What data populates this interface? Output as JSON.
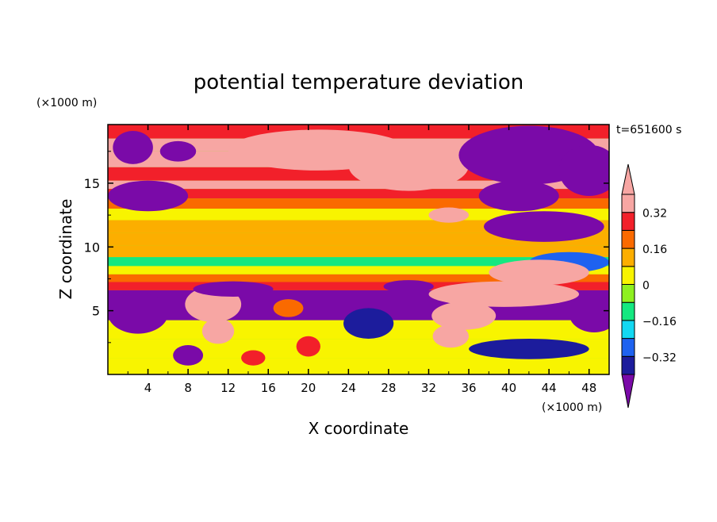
{
  "chart_data": {
    "type": "heatmap",
    "title": "potential temperature deviation",
    "time_label": "t=651600 s",
    "xlabel": "X coordinate",
    "ylabel": "Z coordinate",
    "x_unit": "(×1000 m)",
    "y_unit": "(×1000 m)",
    "xlim": [
      0,
      50
    ],
    "ylim": [
      0,
      19.6
    ],
    "x_ticks": [
      4,
      8,
      12,
      16,
      20,
      24,
      28,
      32,
      36,
      40,
      44,
      48
    ],
    "y_ticks": [
      5,
      10,
      15
    ],
    "colorbar": {
      "levels": [
        -0.4,
        -0.32,
        -0.24,
        -0.16,
        -0.08,
        0,
        0.08,
        0.16,
        0.24,
        0.32,
        0.4
      ],
      "labeled_levels": [
        "0.32",
        "0.16",
        "0",
        "−0.16",
        "−0.32"
      ],
      "labeled_values": [
        0.32,
        0.16,
        0,
        -0.16,
        -0.32
      ],
      "colors": [
        "#7a0aa8",
        "#1c1c9c",
        "#1e62f0",
        "#12d8f2",
        "#14e880",
        "#8ef020",
        "#f8f400",
        "#fcae00",
        "#fa6a00",
        "#f2202a",
        "#f7a6a3"
      ]
    },
    "field_bands": [
      {
        "z": 19.0,
        "value": 0.3
      },
      {
        "z": 18.0,
        "value": 0.45
      },
      {
        "z": 17.0,
        "value": 0.45
      },
      {
        "z": 15.5,
        "value": 0.3
      },
      {
        "z": 14.9,
        "value": 0.42
      },
      {
        "z": 14.2,
        "value": 0.3
      },
      {
        "z": 13.4,
        "value": 0.2
      },
      {
        "z": 12.6,
        "value": 0.05
      },
      {
        "z": 11.6,
        "value": 0.1
      },
      {
        "z": 10.6,
        "value": 0.12
      },
      {
        "z": 9.6,
        "value": 0.1
      },
      {
        "z": 8.8,
        "value": -0.1
      },
      {
        "z": 8.2,
        "value": 0.02
      },
      {
        "z": 7.5,
        "value": 0.2
      },
      {
        "z": 7.0,
        "value": 0.3
      },
      {
        "z": 6.2,
        "value": -0.45
      },
      {
        "z": 5.0,
        "value": -0.45
      },
      {
        "z": 3.5,
        "value": 0.05
      },
      {
        "z": 2.0,
        "value": 0.0
      },
      {
        "z": 0.5,
        "value": 0.02
      }
    ],
    "features": [
      {
        "shape": "ellipse",
        "x": 21,
        "z": 17.6,
        "rx": 9,
        "rz": 1.6,
        "value": 0.45
      },
      {
        "shape": "ellipse",
        "x": 30,
        "z": 16.4,
        "rx": 6,
        "rz": 2.0,
        "value": 0.45
      },
      {
        "shape": "ellipse",
        "x": 42,
        "z": 17.2,
        "rx": 7,
        "rz": 2.3,
        "value": -0.45
      },
      {
        "shape": "ellipse",
        "x": 48,
        "z": 16.0,
        "rx": 3,
        "rz": 2.0,
        "value": -0.45
      },
      {
        "shape": "ellipse",
        "x": 2.5,
        "z": 17.8,
        "rx": 2,
        "rz": 1.3,
        "value": -0.45
      },
      {
        "shape": "ellipse",
        "x": 7,
        "z": 17.5,
        "rx": 1.8,
        "rz": 0.8,
        "value": -0.45
      },
      {
        "shape": "ellipse",
        "x": 4,
        "z": 14.0,
        "rx": 4,
        "rz": 1.2,
        "value": -0.45
      },
      {
        "shape": "ellipse",
        "x": 41,
        "z": 14.0,
        "rx": 4,
        "rz": 1.2,
        "value": -0.45
      },
      {
        "shape": "ellipse",
        "x": 43.5,
        "z": 11.6,
        "rx": 6,
        "rz": 1.2,
        "value": -0.45
      },
      {
        "shape": "ellipse",
        "x": 46,
        "z": 8.8,
        "rx": 4,
        "rz": 0.8,
        "value": -0.3
      },
      {
        "shape": "ellipse",
        "x": 34,
        "z": 12.5,
        "rx": 2,
        "rz": 0.6,
        "value": 0.45
      },
      {
        "shape": "ellipse",
        "x": 43,
        "z": 8.0,
        "rx": 5,
        "rz": 1.0,
        "value": 0.45
      },
      {
        "shape": "ellipse",
        "x": 39.5,
        "z": 6.3,
        "rx": 7.5,
        "rz": 1.0,
        "value": 0.45
      },
      {
        "shape": "ellipse",
        "x": 35.5,
        "z": 4.6,
        "rx": 3.2,
        "rz": 1.1,
        "value": 0.45
      },
      {
        "shape": "ellipse",
        "x": 34.2,
        "z": 3.0,
        "rx": 1.8,
        "rz": 0.9,
        "value": 0.45
      },
      {
        "shape": "ellipse",
        "x": 10.5,
        "z": 5.5,
        "rx": 2.8,
        "rz": 1.4,
        "value": 0.45
      },
      {
        "shape": "ellipse",
        "x": 11,
        "z": 3.4,
        "rx": 1.6,
        "rz": 1.0,
        "value": 0.45
      },
      {
        "shape": "ellipse",
        "x": 3,
        "z": 4.8,
        "rx": 3,
        "rz": 1.6,
        "value": -0.45
      },
      {
        "shape": "ellipse",
        "x": 48.5,
        "z": 4.8,
        "rx": 2.5,
        "rz": 1.5,
        "value": -0.45
      },
      {
        "shape": "ellipse",
        "x": 42,
        "z": 2.0,
        "rx": 6,
        "rz": 0.8,
        "value": -0.35
      },
      {
        "shape": "ellipse",
        "x": 26,
        "z": 4.0,
        "rx": 2.5,
        "rz": 1.2,
        "value": -0.35
      },
      {
        "shape": "ellipse",
        "x": 18,
        "z": 5.2,
        "rx": 1.5,
        "rz": 0.7,
        "value": 0.2
      },
      {
        "shape": "ellipse",
        "x": 20,
        "z": 2.2,
        "rx": 1.2,
        "rz": 0.8,
        "value": 0.3
      },
      {
        "shape": "ellipse",
        "x": 14.5,
        "z": 1.3,
        "rx": 1.2,
        "rz": 0.6,
        "value": 0.3
      },
      {
        "shape": "ellipse",
        "x": 8,
        "z": 1.5,
        "rx": 1.5,
        "rz": 0.8,
        "value": -0.45
      },
      {
        "shape": "ellipse",
        "x": 12.5,
        "z": 6.7,
        "rx": 4,
        "rz": 0.6,
        "value": -0.45
      },
      {
        "shape": "ellipse",
        "x": 30,
        "z": 6.9,
        "rx": 2.5,
        "rz": 0.5,
        "value": -0.45
      }
    ]
  }
}
